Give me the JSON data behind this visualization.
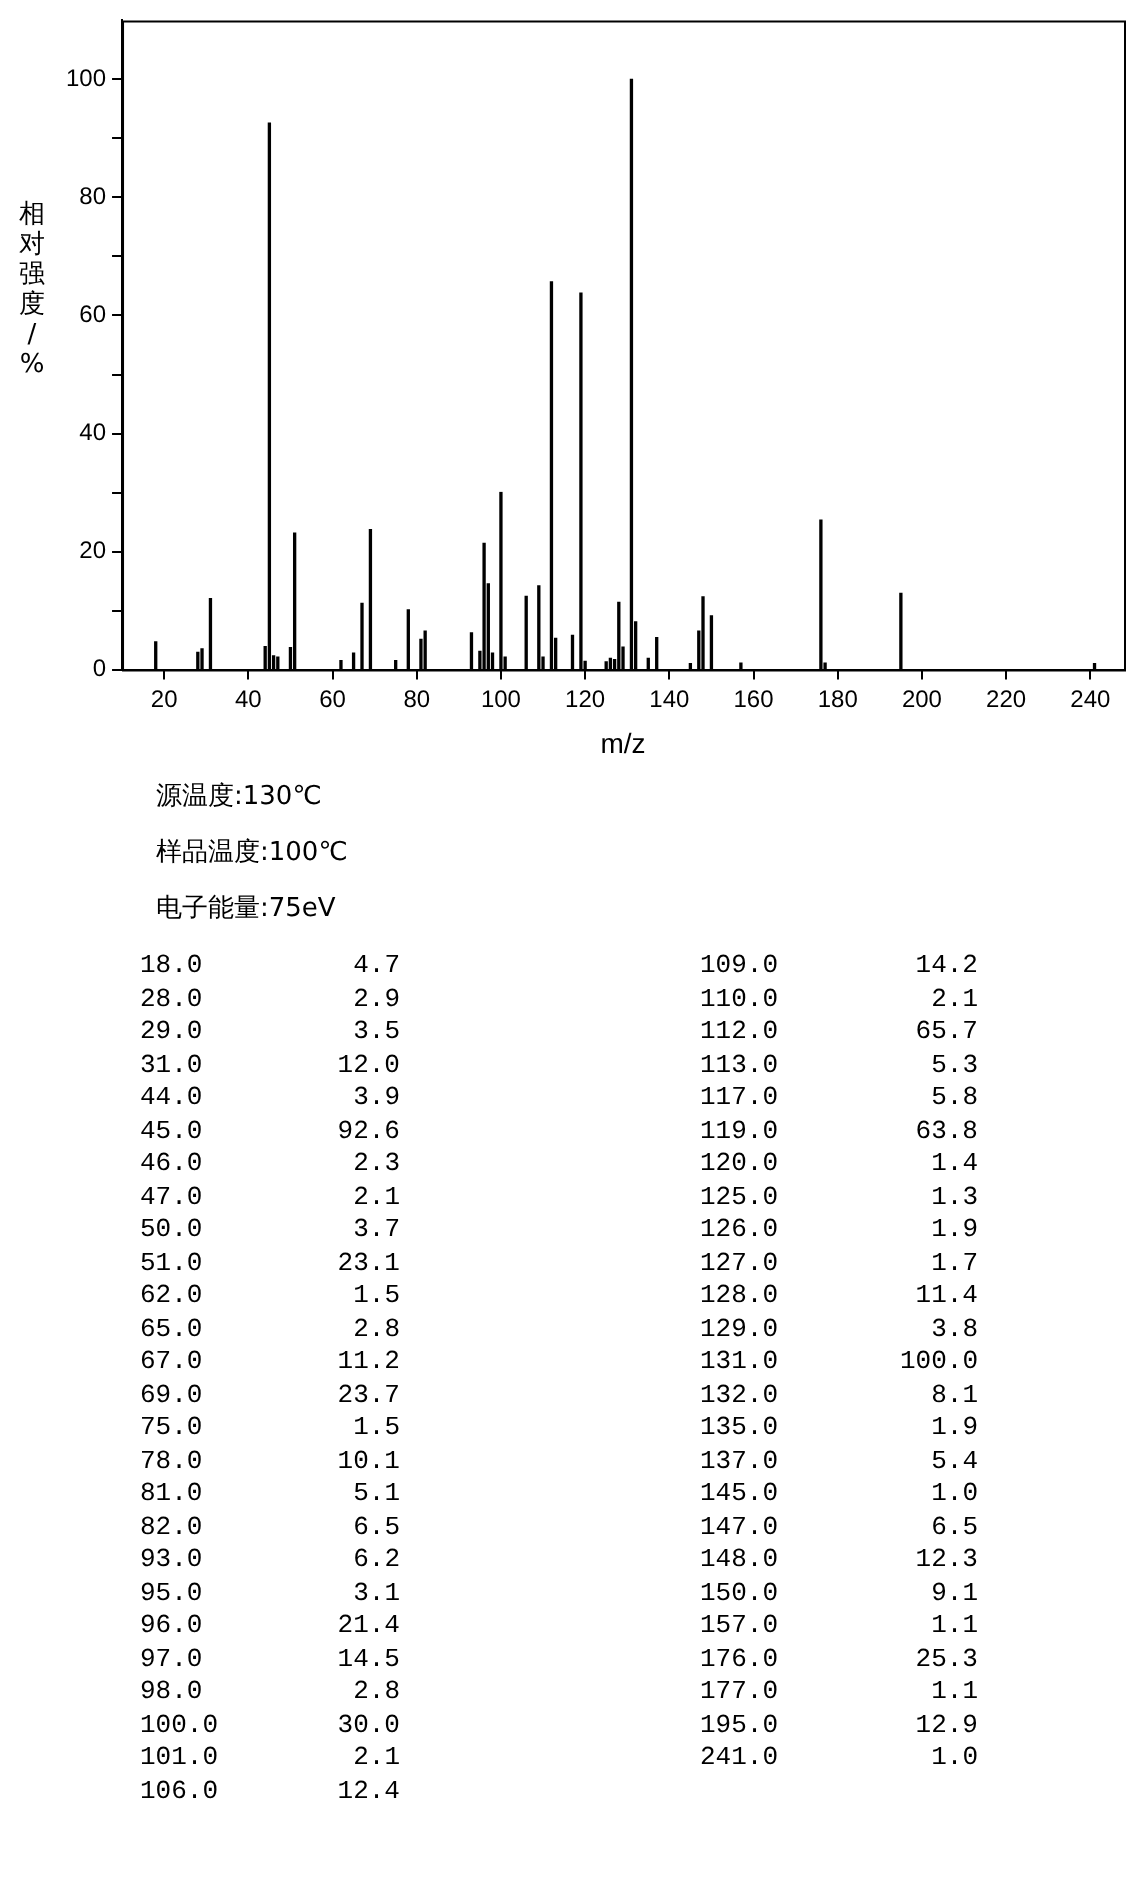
{
  "chart_data": [
    {
      "type": "bar",
      "xlabel": "m/z",
      "ylabel": "相对强度/%",
      "x": [
        18,
        28,
        29,
        31,
        44,
        45,
        46,
        47,
        50,
        51,
        62,
        65,
        67,
        69,
        75,
        78,
        81,
        82,
        93,
        95,
        96,
        97,
        98,
        100,
        101,
        106,
        109,
        110,
        112,
        113,
        117,
        119,
        120,
        125,
        126,
        127,
        128,
        129,
        131,
        132,
        135,
        137,
        145,
        147,
        148,
        150,
        157,
        176,
        177,
        195,
        241
      ],
      "values": [
        4.7,
        2.9,
        3.5,
        12.0,
        3.9,
        92.6,
        2.3,
        2.1,
        3.7,
        23.1,
        1.5,
        2.8,
        11.2,
        23.7,
        1.5,
        10.1,
        5.1,
        6.5,
        6.2,
        3.1,
        21.4,
        14.5,
        2.8,
        30.0,
        2.1,
        12.4,
        14.2,
        2.1,
        65.7,
        5.3,
        5.8,
        63.8,
        1.4,
        1.3,
        1.9,
        1.7,
        11.4,
        3.8,
        100.0,
        8.1,
        1.9,
        5.4,
        1.0,
        6.5,
        12.3,
        9.1,
        1.1,
        25.3,
        1.1,
        12.9,
        1.0
      ],
      "color": "#000000",
      "xlim": [
        10,
        248
      ],
      "xticks": [
        20,
        40,
        60,
        80,
        100,
        120,
        140,
        160,
        180,
        200,
        220,
        240
      ],
      "ylim": [
        0,
        110
      ],
      "yticks": [
        0,
        {
          "value": 10,
          "label": null
        },
        20,
        {
          "value": 30,
          "label": null
        },
        40,
        {
          "value": 50,
          "label": null
        },
        60,
        {
          "value": 70,
          "label": null
        },
        80,
        {
          "value": 90,
          "label": null
        },
        100
      ],
      "grid": false,
      "legend": false,
      "annotations": [
        "源温度:130℃",
        "样品温度:100℃",
        "电子能量:75eV"
      ]
    },
    {
      "type": "other",
      "annotations": [
        "18.0",
        "4.7",
        "28.0",
        "2.9",
        "29.0",
        "3.5",
        "31.0",
        "12.0",
        "44.0",
        "3.9",
        "45.0",
        "92.6",
        "46.0",
        "2.3",
        "47.0",
        "2.1",
        "50.0",
        "3.7",
        "51.0",
        "23.1",
        "62.0",
        "1.5",
        "65.0",
        "2.8",
        "67.0",
        "11.2",
        "69.0",
        "23.7",
        "75.0",
        "1.5",
        "78.0",
        "10.1",
        "81.0",
        "5.1",
        "82.0",
        "6.5",
        "93.0",
        "6.2",
        "95.0",
        "3.1",
        "96.0",
        "21.4",
        "97.0",
        "14.5",
        "98.0",
        "2.8",
        "100.0",
        "30.0",
        "101.0",
        "2.1",
        "106.0",
        "12.4",
        "109.0",
        "14.2",
        "110.0",
        "2.1",
        "112.0",
        "65.7",
        "113.0",
        "5.3",
        "117.0",
        "5.8",
        "119.0",
        "63.8",
        "120.0",
        "1.4",
        "125.0",
        "1.3",
        "126.0",
        "1.9",
        "127.0",
        "1.7",
        "128.0",
        "11.4",
        "129.0",
        "3.8",
        "131.0",
        "100.0",
        "132.0",
        "8.1",
        "135.0",
        "1.9",
        "137.0",
        "5.4",
        "145.0",
        "1.0",
        "147.0",
        "6.5",
        "148.0",
        "12.3",
        "150.0",
        "9.1",
        "157.0",
        "1.1",
        "176.0",
        "25.3",
        "177.0",
        "1.1",
        "195.0",
        "12.9",
        "241.0",
        "1.0"
      ]
    }
  ]
}
